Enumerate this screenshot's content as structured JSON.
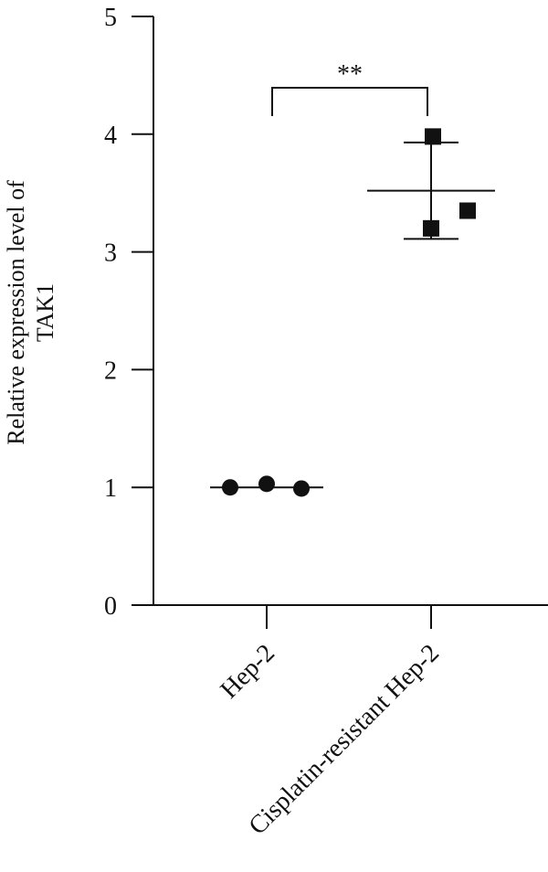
{
  "chart_data": {
    "type": "scatter",
    "title": "",
    "xlabel": "",
    "ylabel_lines": [
      "Relative expression level of",
      "TAK1"
    ],
    "ylim": [
      0,
      5
    ],
    "y_ticks": [
      "0",
      "1",
      "2",
      "3",
      "4",
      "5"
    ],
    "categories": [
      "Hep-2",
      "Cisplatin-resistant Hep-2"
    ],
    "series": [
      {
        "category": "Hep-2",
        "marker": "circle",
        "points": [
          1.0,
          1.03,
          0.99
        ],
        "mean": 1.0,
        "error": [
          1.0,
          1.0
        ]
      },
      {
        "category": "Cisplatin-resistant Hep-2",
        "marker": "square",
        "points": [
          3.98,
          3.2,
          3.35
        ],
        "mean": 3.52,
        "error": [
          3.11,
          3.93
        ]
      }
    ],
    "significance": {
      "label": "**",
      "between": [
        0,
        1
      ]
    },
    "grid": false,
    "legend": "none",
    "colors": {
      "ink": "#111111"
    }
  }
}
